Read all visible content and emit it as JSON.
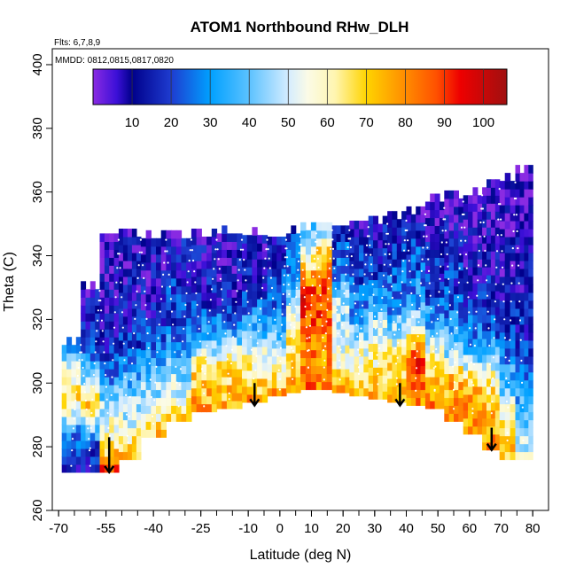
{
  "chart_data": {
    "type": "heatmap",
    "title": "ATOM1 Northbound RHw_DLH",
    "flights_note": "Flts: 6,7,8,9",
    "dates_note": "MMDD: 0812,0815,0817,0820",
    "xlabel": "Latitude (deg N)",
    "ylabel": "Theta (C)",
    "xlim": [
      -72,
      85
    ],
    "ylim": [
      260,
      405
    ],
    "x_ticks": [
      -70,
      -55,
      -40,
      -25,
      -10,
      0,
      10,
      20,
      30,
      40,
      50,
      60,
      70,
      80
    ],
    "x_tick_labels": [
      "-70",
      "-55",
      "-40",
      "-25",
      "-10",
      "0",
      "10",
      "20",
      "30",
      "40",
      "50",
      "60",
      "70",
      "80"
    ],
    "y_ticks": [
      260,
      280,
      300,
      320,
      340,
      360,
      380,
      400
    ],
    "y_tick_labels": [
      "260",
      "280",
      "300",
      "320",
      "340",
      "360",
      "380",
      "400"
    ],
    "colorbar": {
      "range": [
        0,
        106
      ],
      "ticks": [
        10,
        20,
        30,
        40,
        50,
        60,
        70,
        80,
        90,
        100
      ],
      "tick_labels": [
        "10",
        "20",
        "30",
        "40",
        "50",
        "60",
        "70",
        "80",
        "90",
        "100"
      ],
      "colors": [
        {
          "v": 0,
          "c": "#8a2be2"
        },
        {
          "v": 6,
          "c": "#3c10d8"
        },
        {
          "v": 10,
          "c": "#00008b"
        },
        {
          "v": 20,
          "c": "#1e3cd0"
        },
        {
          "v": 30,
          "c": "#00a0ff"
        },
        {
          "v": 40,
          "c": "#5cc2ff"
        },
        {
          "v": 50,
          "c": "#d4ecff"
        },
        {
          "v": 55,
          "c": "#fbfbe6"
        },
        {
          "v": 62,
          "c": "#fff5b0"
        },
        {
          "v": 70,
          "c": "#ffd400"
        },
        {
          "v": 80,
          "c": "#ff8c00"
        },
        {
          "v": 88,
          "c": "#ff5000"
        },
        {
          "v": 94,
          "c": "#ee0000"
        },
        {
          "v": 106,
          "c": "#a01010"
        }
      ]
    },
    "surface_boundary": [
      {
        "x": -66,
        "y": 272
      },
      {
        "x": -55,
        "y": 271
      },
      {
        "x": -50,
        "y": 275
      },
      {
        "x": -42,
        "y": 283
      },
      {
        "x": -33,
        "y": 288
      },
      {
        "x": -20,
        "y": 292
      },
      {
        "x": -8,
        "y": 294
      },
      {
        "x": 5,
        "y": 297
      },
      {
        "x": 12,
        "y": 298
      },
      {
        "x": 25,
        "y": 296
      },
      {
        "x": 38,
        "y": 294
      },
      {
        "x": 48,
        "y": 292
      },
      {
        "x": 58,
        "y": 287
      },
      {
        "x": 68,
        "y": 279
      },
      {
        "x": 72,
        "y": 276
      },
      {
        "x": 78,
        "y": 276
      }
    ],
    "top_boundary": [
      {
        "x": -66,
        "y": 313
      },
      {
        "x": -57,
        "y": 346
      },
      {
        "x": -40,
        "y": 345
      },
      {
        "x": -20,
        "y": 345
      },
      {
        "x": 5,
        "y": 348
      },
      {
        "x": 30,
        "y": 351
      },
      {
        "x": 50,
        "y": 357
      },
      {
        "x": 65,
        "y": 362
      },
      {
        "x": 76,
        "y": 365
      },
      {
        "x": 79,
        "y": 365
      }
    ],
    "profile_columns": [
      {
        "x": -66,
        "lo": 272,
        "hi": 313,
        "profile": [
          [
            272,
            8
          ],
          [
            285,
            35
          ],
          [
            295,
            72
          ],
          [
            305,
            45
          ],
          [
            313,
            22
          ]
        ]
      },
      {
        "x": -60,
        "lo": 272,
        "hi": 330,
        "profile": [
          [
            272,
            10
          ],
          [
            280,
            25
          ],
          [
            292,
            70
          ],
          [
            300,
            40
          ],
          [
            315,
            15
          ],
          [
            330,
            8
          ]
        ]
      },
      {
        "x": -54,
        "lo": 272,
        "hi": 346,
        "profile": [
          [
            272,
            90
          ],
          [
            278,
            65
          ],
          [
            290,
            50
          ],
          [
            305,
            20
          ],
          [
            320,
            10
          ],
          [
            346,
            6
          ]
        ]
      },
      {
        "x": -48,
        "lo": 276,
        "hi": 346,
        "profile": [
          [
            276,
            72
          ],
          [
            285,
            55
          ],
          [
            300,
            35
          ],
          [
            315,
            14
          ],
          [
            346,
            8
          ]
        ]
      },
      {
        "x": -40,
        "lo": 283,
        "hi": 346,
        "profile": [
          [
            283,
            70
          ],
          [
            292,
            50
          ],
          [
            305,
            35
          ],
          [
            320,
            12
          ],
          [
            346,
            8
          ]
        ]
      },
      {
        "x": -32,
        "lo": 288,
        "hi": 346,
        "profile": [
          [
            288,
            68
          ],
          [
            296,
            52
          ],
          [
            305,
            38
          ],
          [
            320,
            20
          ],
          [
            346,
            10
          ]
        ]
      },
      {
        "x": -24,
        "lo": 291,
        "hi": 346,
        "profile": [
          [
            291,
            76
          ],
          [
            300,
            70
          ],
          [
            306,
            60
          ],
          [
            312,
            35
          ],
          [
            325,
            15
          ],
          [
            346,
            10
          ]
        ]
      },
      {
        "x": -16,
        "lo": 292,
        "hi": 346,
        "profile": [
          [
            292,
            76
          ],
          [
            300,
            68
          ],
          [
            306,
            60
          ],
          [
            312,
            42
          ],
          [
            325,
            12
          ],
          [
            346,
            10
          ]
        ]
      },
      {
        "x": -8,
        "lo": 294,
        "hi": 346,
        "profile": [
          [
            294,
            76
          ],
          [
            300,
            68
          ],
          [
            306,
            60
          ],
          [
            315,
            38
          ],
          [
            330,
            15
          ],
          [
            346,
            10
          ]
        ]
      },
      {
        "x": 0,
        "lo": 296,
        "hi": 346,
        "profile": [
          [
            296,
            76
          ],
          [
            302,
            62
          ],
          [
            310,
            45
          ],
          [
            322,
            25
          ],
          [
            346,
            12
          ]
        ]
      },
      {
        "x": 4,
        "lo": 297,
        "hi": 347,
        "profile": [
          [
            297,
            78
          ],
          [
            305,
            70
          ],
          [
            315,
            62
          ],
          [
            325,
            45
          ],
          [
            335,
            28
          ],
          [
            347,
            14
          ]
        ]
      },
      {
        "x": 9,
        "lo": 298,
        "hi": 348,
        "profile": [
          [
            298,
            82
          ],
          [
            308,
            80
          ],
          [
            318,
            88
          ],
          [
            326,
            94
          ],
          [
            335,
            70
          ],
          [
            348,
            35
          ]
        ]
      },
      {
        "x": 14,
        "lo": 298,
        "hi": 349,
        "profile": [
          [
            298,
            80
          ],
          [
            308,
            78
          ],
          [
            318,
            85
          ],
          [
            326,
            90
          ],
          [
            338,
            72
          ],
          [
            349,
            40
          ]
        ]
      },
      {
        "x": 19,
        "lo": 297,
        "hi": 349,
        "profile": [
          [
            297,
            78
          ],
          [
            305,
            60
          ],
          [
            315,
            50
          ],
          [
            325,
            45
          ],
          [
            335,
            25
          ],
          [
            349,
            14
          ]
        ]
      },
      {
        "x": 25,
        "lo": 296,
        "hi": 350,
        "profile": [
          [
            296,
            74
          ],
          [
            303,
            62
          ],
          [
            312,
            50
          ],
          [
            322,
            28
          ],
          [
            350,
            10
          ]
        ]
      },
      {
        "x": 31,
        "lo": 295,
        "hi": 351,
        "profile": [
          [
            295,
            74
          ],
          [
            302,
            65
          ],
          [
            312,
            55
          ],
          [
            322,
            40
          ],
          [
            335,
            18
          ],
          [
            351,
            10
          ]
        ]
      },
      {
        "x": 37,
        "lo": 294,
        "hi": 352,
        "profile": [
          [
            294,
            76
          ],
          [
            300,
            72
          ],
          [
            310,
            58
          ],
          [
            322,
            30
          ],
          [
            352,
            10
          ]
        ]
      },
      {
        "x": 43,
        "lo": 293,
        "hi": 354,
        "profile": [
          [
            293,
            80
          ],
          [
            300,
            85
          ],
          [
            305,
            92
          ],
          [
            312,
            70
          ],
          [
            322,
            35
          ],
          [
            354,
            8
          ]
        ]
      },
      {
        "x": 49,
        "lo": 292,
        "hi": 356,
        "profile": [
          [
            292,
            80
          ],
          [
            300,
            74
          ],
          [
            306,
            66
          ],
          [
            315,
            38
          ],
          [
            330,
            18
          ],
          [
            356,
            5
          ]
        ]
      },
      {
        "x": 55,
        "lo": 288,
        "hi": 358,
        "profile": [
          [
            288,
            80
          ],
          [
            295,
            76
          ],
          [
            302,
            70
          ],
          [
            310,
            40
          ],
          [
            325,
            20
          ],
          [
            358,
            5
          ]
        ]
      },
      {
        "x": 61,
        "lo": 284,
        "hi": 360,
        "profile": [
          [
            284,
            80
          ],
          [
            292,
            76
          ],
          [
            300,
            68
          ],
          [
            310,
            30
          ],
          [
            330,
            12
          ],
          [
            360,
            3
          ]
        ]
      },
      {
        "x": 67,
        "lo": 279,
        "hi": 362,
        "profile": [
          [
            279,
            80
          ],
          [
            290,
            74
          ],
          [
            300,
            60
          ],
          [
            315,
            20
          ],
          [
            362,
            3
          ]
        ]
      },
      {
        "x": 72,
        "lo": 276,
        "hi": 364,
        "profile": [
          [
            276,
            72
          ],
          [
            285,
            66
          ],
          [
            295,
            45
          ],
          [
            310,
            22
          ],
          [
            330,
            10
          ],
          [
            364,
            2
          ]
        ]
      },
      {
        "x": 77,
        "lo": 276,
        "hi": 366,
        "profile": [
          [
            276,
            55
          ],
          [
            285,
            40
          ],
          [
            298,
            30
          ],
          [
            315,
            15
          ],
          [
            340,
            8
          ],
          [
            366,
            3
          ]
        ]
      }
    ],
    "arrows": [
      {
        "x": -54,
        "y_from": 283,
        "y_to": 272
      },
      {
        "x": -8,
        "y_from": 300,
        "y_to": 293
      },
      {
        "x": 38,
        "y_from": 300,
        "y_to": 293
      },
      {
        "x": 67,
        "y_from": 286,
        "y_to": 279
      }
    ]
  }
}
